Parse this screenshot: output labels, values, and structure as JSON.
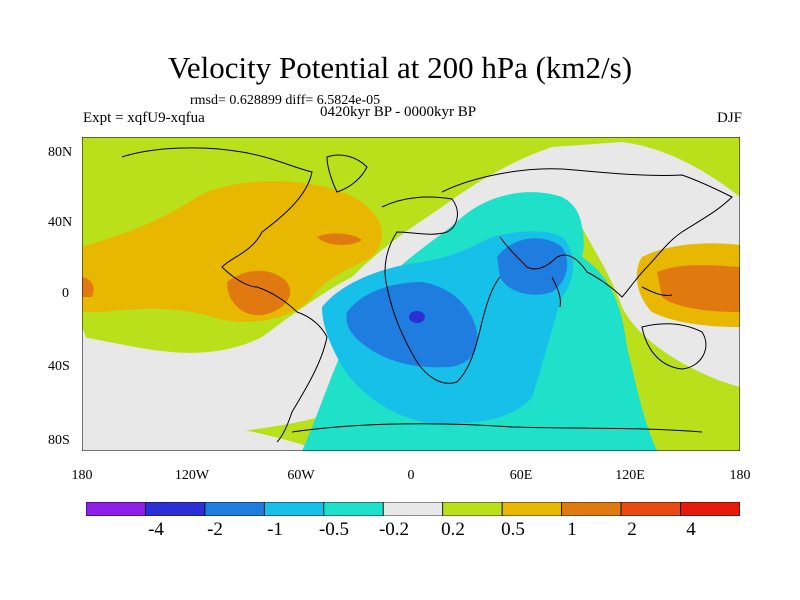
{
  "title": "Velocity Potential at 200 hPa (km2/s)",
  "stats": "rmsd= 0.628899 diff= 6.5824e-05",
  "expt": "Expt = xqfU9-xqfua",
  "period": "0420kyr BP - 0000kyr BP",
  "season": "DJF",
  "axes": {
    "y_ticks": [
      "80N",
      "40N",
      "0",
      "40S",
      "80S"
    ],
    "x_ticks": [
      "180",
      "120W",
      "60W",
      "0",
      "60E",
      "120E",
      "180"
    ]
  },
  "colorbar": {
    "labels": [
      "-4",
      "-2",
      "-1",
      "-0.5",
      "-0.2",
      "0.2",
      "0.5",
      "1",
      "2",
      "4"
    ],
    "colors": [
      "#8f1fe8",
      "#2b2fd6",
      "#1f7de0",
      "#17c0e8",
      "#1fe0c8",
      "#e8e8e8",
      "#b9e01a",
      "#e8b800",
      "#e07a10",
      "#e84a12",
      "#e81a0a"
    ]
  },
  "map_data": {
    "type": "filled-contour",
    "lon_range": [
      -180,
      180
    ],
    "lat_range": [
      -90,
      90
    ],
    "variable": "Velocity Potential at 200 hPa",
    "units": "km2/s"
  }
}
